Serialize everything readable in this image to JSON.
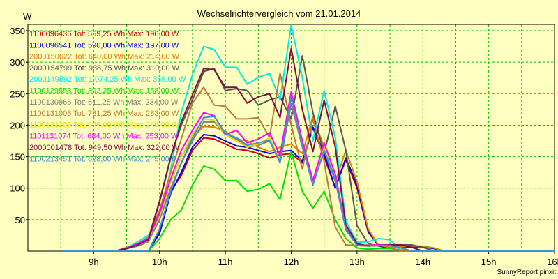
{
  "chart_data": {
    "type": "line",
    "title": "Wechselrichtervergleich vom 21.01.2014",
    "ylabel": "W",
    "xlabel": "",
    "footer": "SunnyReport pinxit",
    "ylim": [
      0,
      360
    ],
    "xlim": [
      8.0,
      16.0
    ],
    "grid": true,
    "legend_position": "top-left",
    "y_ticks": [
      50,
      100,
      150,
      200,
      250,
      300,
      350
    ],
    "x_ticks": [
      {
        "value": 9,
        "label": "9h"
      },
      {
        "value": 10,
        "label": "10h"
      },
      {
        "value": 11,
        "label": "11h"
      },
      {
        "value": 12,
        "label": "12h"
      },
      {
        "value": 13,
        "label": "13h"
      },
      {
        "value": 14,
        "label": "14h"
      },
      {
        "value": 15,
        "label": "15h"
      },
      {
        "value": 16,
        "label": "16h"
      }
    ],
    "x": [
      8.5,
      9.0,
      9.33,
      9.5,
      9.67,
      9.83,
      10.0,
      10.17,
      10.33,
      10.5,
      10.67,
      10.83,
      11.0,
      11.17,
      11.33,
      11.5,
      11.67,
      11.83,
      12.0,
      12.17,
      12.33,
      12.5,
      12.67,
      12.83,
      13.0,
      13.17,
      13.33,
      13.5,
      13.67,
      13.83,
      14.0,
      14.17,
      14.33,
      14.5,
      14.67,
      14.83,
      15.0,
      15.17,
      15.33,
      15.5,
      15.67,
      15.83,
      16.0
    ],
    "series": [
      {
        "name": "1100096436 Tot: 559,25 Wh Max: 196,00 W",
        "color": "#cc0000",
        "values": [
          0,
          0,
          0,
          0,
          0,
          0,
          30,
          95,
          120,
          160,
          180,
          178,
          170,
          162,
          160,
          155,
          148,
          153,
          155,
          140,
          196,
          150,
          100,
          145,
          100,
          30,
          8,
          5,
          6,
          7,
          7,
          4,
          0,
          0,
          0,
          0,
          0,
          0,
          0,
          0,
          0,
          0,
          0
        ]
      },
      {
        "name": "1100096541 Tot: 590,00 Wh Max: 197,00 W",
        "color": "#0000ee",
        "values": [
          0,
          0,
          0,
          0,
          0,
          0,
          28,
          92,
          125,
          165,
          185,
          183,
          175,
          167,
          165,
          160,
          155,
          158,
          160,
          143,
          197,
          155,
          100,
          148,
          105,
          32,
          8,
          5,
          6,
          7,
          7,
          4,
          0,
          0,
          0,
          0,
          0,
          0,
          0,
          0,
          0,
          0,
          0
        ]
      },
      {
        "name": "2000150622 Tot: 640,00 Wh Max: 214,00 W",
        "color": "#e08000",
        "values": [
          0,
          0,
          0,
          6,
          12,
          20,
          60,
          110,
          150,
          180,
          198,
          197,
          190,
          178,
          175,
          165,
          158,
          165,
          170,
          155,
          214,
          165,
          110,
          160,
          110,
          35,
          9,
          6,
          7,
          8,
          8,
          5,
          0,
          0,
          0,
          0,
          0,
          0,
          0,
          0,
          0,
          0,
          0
        ]
      },
      {
        "name": "2000154799 Tot: 938,75 Wh Max: 310,00 W",
        "color": "#555555",
        "values": [
          0,
          0,
          0,
          4,
          10,
          20,
          80,
          150,
          200,
          240,
          285,
          290,
          255,
          258,
          255,
          232,
          240,
          245,
          210,
          310,
          220,
          155,
          230,
          160,
          40,
          12,
          8,
          9,
          10,
          10,
          6,
          0,
          0,
          0,
          0,
          0,
          0,
          0,
          0,
          0,
          0,
          0,
          0
        ]
      },
      {
        "name": "2000149892 Tot: 1.074,25 Wh Max: 359,00 W",
        "color": "#00e8e8",
        "values": [
          0,
          0,
          0,
          5,
          15,
          25,
          50,
          130,
          220,
          280,
          325,
          320,
          292,
          292,
          265,
          276,
          282,
          240,
          359,
          275,
          175,
          255,
          180,
          48,
          14,
          15,
          20,
          18,
          0,
          0,
          0,
          0,
          0,
          0,
          0,
          0,
          0,
          0,
          0,
          0,
          0,
          0,
          0
        ]
      },
      {
        "name": "1100129553 Tot: 392,25 Wh Max: 158,00 W",
        "color": "#00e000",
        "values": [
          0,
          0,
          0,
          0,
          0,
          0,
          20,
          50,
          65,
          105,
          135,
          130,
          112,
          112,
          95,
          98,
          107,
          82,
          158,
          95,
          68,
          95,
          50,
          20,
          5,
          3,
          4,
          4,
          2,
          0,
          0,
          0,
          0,
          0,
          0,
          0,
          0,
          0,
          0,
          0,
          0,
          0,
          0
        ]
      },
      {
        "name": "1100130966 Tot: 611,25 Wh Max: 234,00 W",
        "color": "#808080",
        "values": [
          0,
          0,
          0,
          4,
          8,
          15,
          50,
          100,
          140,
          175,
          205,
          205,
          185,
          178,
          165,
          168,
          175,
          140,
          234,
          165,
          105,
          160,
          112,
          34,
          9,
          8,
          9,
          9,
          5,
          0,
          0,
          0,
          0,
          0,
          0,
          0,
          0,
          0,
          0,
          0,
          0,
          0,
          0
        ]
      },
      {
        "name": "1100131006 Tot: 781,25 Wh Max: 283,00 W",
        "color": "#c07838",
        "values": [
          0,
          0,
          0,
          5,
          12,
          22,
          65,
          125,
          178,
          235,
          260,
          232,
          230,
          210,
          210,
          212,
          180,
          283,
          200,
          130,
          210,
          142,
          38,
          10,
          9,
          10,
          10,
          6,
          0,
          0,
          0,
          0,
          0,
          0,
          0,
          0,
          0,
          0,
          0,
          0,
          0,
          0,
          0
        ]
      },
      {
        "name": "1100131003 Tot: 646,00 Wh Max: 246,00 W",
        "color": "#e0e000",
        "values": [
          0,
          0,
          0,
          4,
          10,
          20,
          55,
          110,
          150,
          185,
          210,
          208,
          185,
          175,
          165,
          170,
          180,
          145,
          246,
          170,
          108,
          165,
          118,
          36,
          9,
          8,
          9,
          9,
          5,
          0,
          0,
          0,
          0,
          0,
          0,
          0,
          0,
          0,
          0,
          0,
          0,
          0,
          0
        ]
      },
      {
        "name": "1101131074 Tot: 684,00 Wh Max: 253,00 W",
        "color": "#ff00ff",
        "values": [
          0,
          0,
          0,
          5,
          12,
          20,
          60,
          115,
          160,
          192,
          220,
          215,
          185,
          192,
          172,
          178,
          188,
          152,
          253,
          175,
          112,
          172,
          122,
          37,
          10,
          9,
          10,
          10,
          5,
          0,
          0,
          0,
          0,
          0,
          0,
          0,
          0,
          0,
          0,
          0,
          0,
          0,
          0
        ]
      },
      {
        "name": "2000001478 Tot: 949,50 Wh Max: 322,00 W",
        "color": "#7a1040",
        "values": [
          0,
          0,
          0,
          4,
          10,
          18,
          78,
          148,
          205,
          248,
          290,
          288,
          260,
          260,
          235,
          245,
          250,
          212,
          322,
          225,
          158,
          240,
          165,
          42,
          12,
          8,
          9,
          10,
          10,
          6,
          0,
          0,
          0,
          0,
          0,
          0,
          0,
          0,
          0,
          0,
          0,
          0,
          0
        ]
      },
      {
        "name": "1100213451 Tot: 628,00 Wh Max: 245,00 W",
        "color": "#4090d0",
        "values": [
          0,
          0,
          0,
          0,
          0,
          0,
          35,
          95,
          140,
          180,
          212,
          214,
          187,
          180,
          168,
          172,
          176,
          142,
          245,
          168,
          105,
          160,
          115,
          35,
          9,
          8,
          9,
          9,
          5,
          0,
          0,
          0,
          0,
          0,
          0,
          0,
          0,
          0,
          0,
          0,
          0,
          0,
          0
        ]
      }
    ]
  }
}
